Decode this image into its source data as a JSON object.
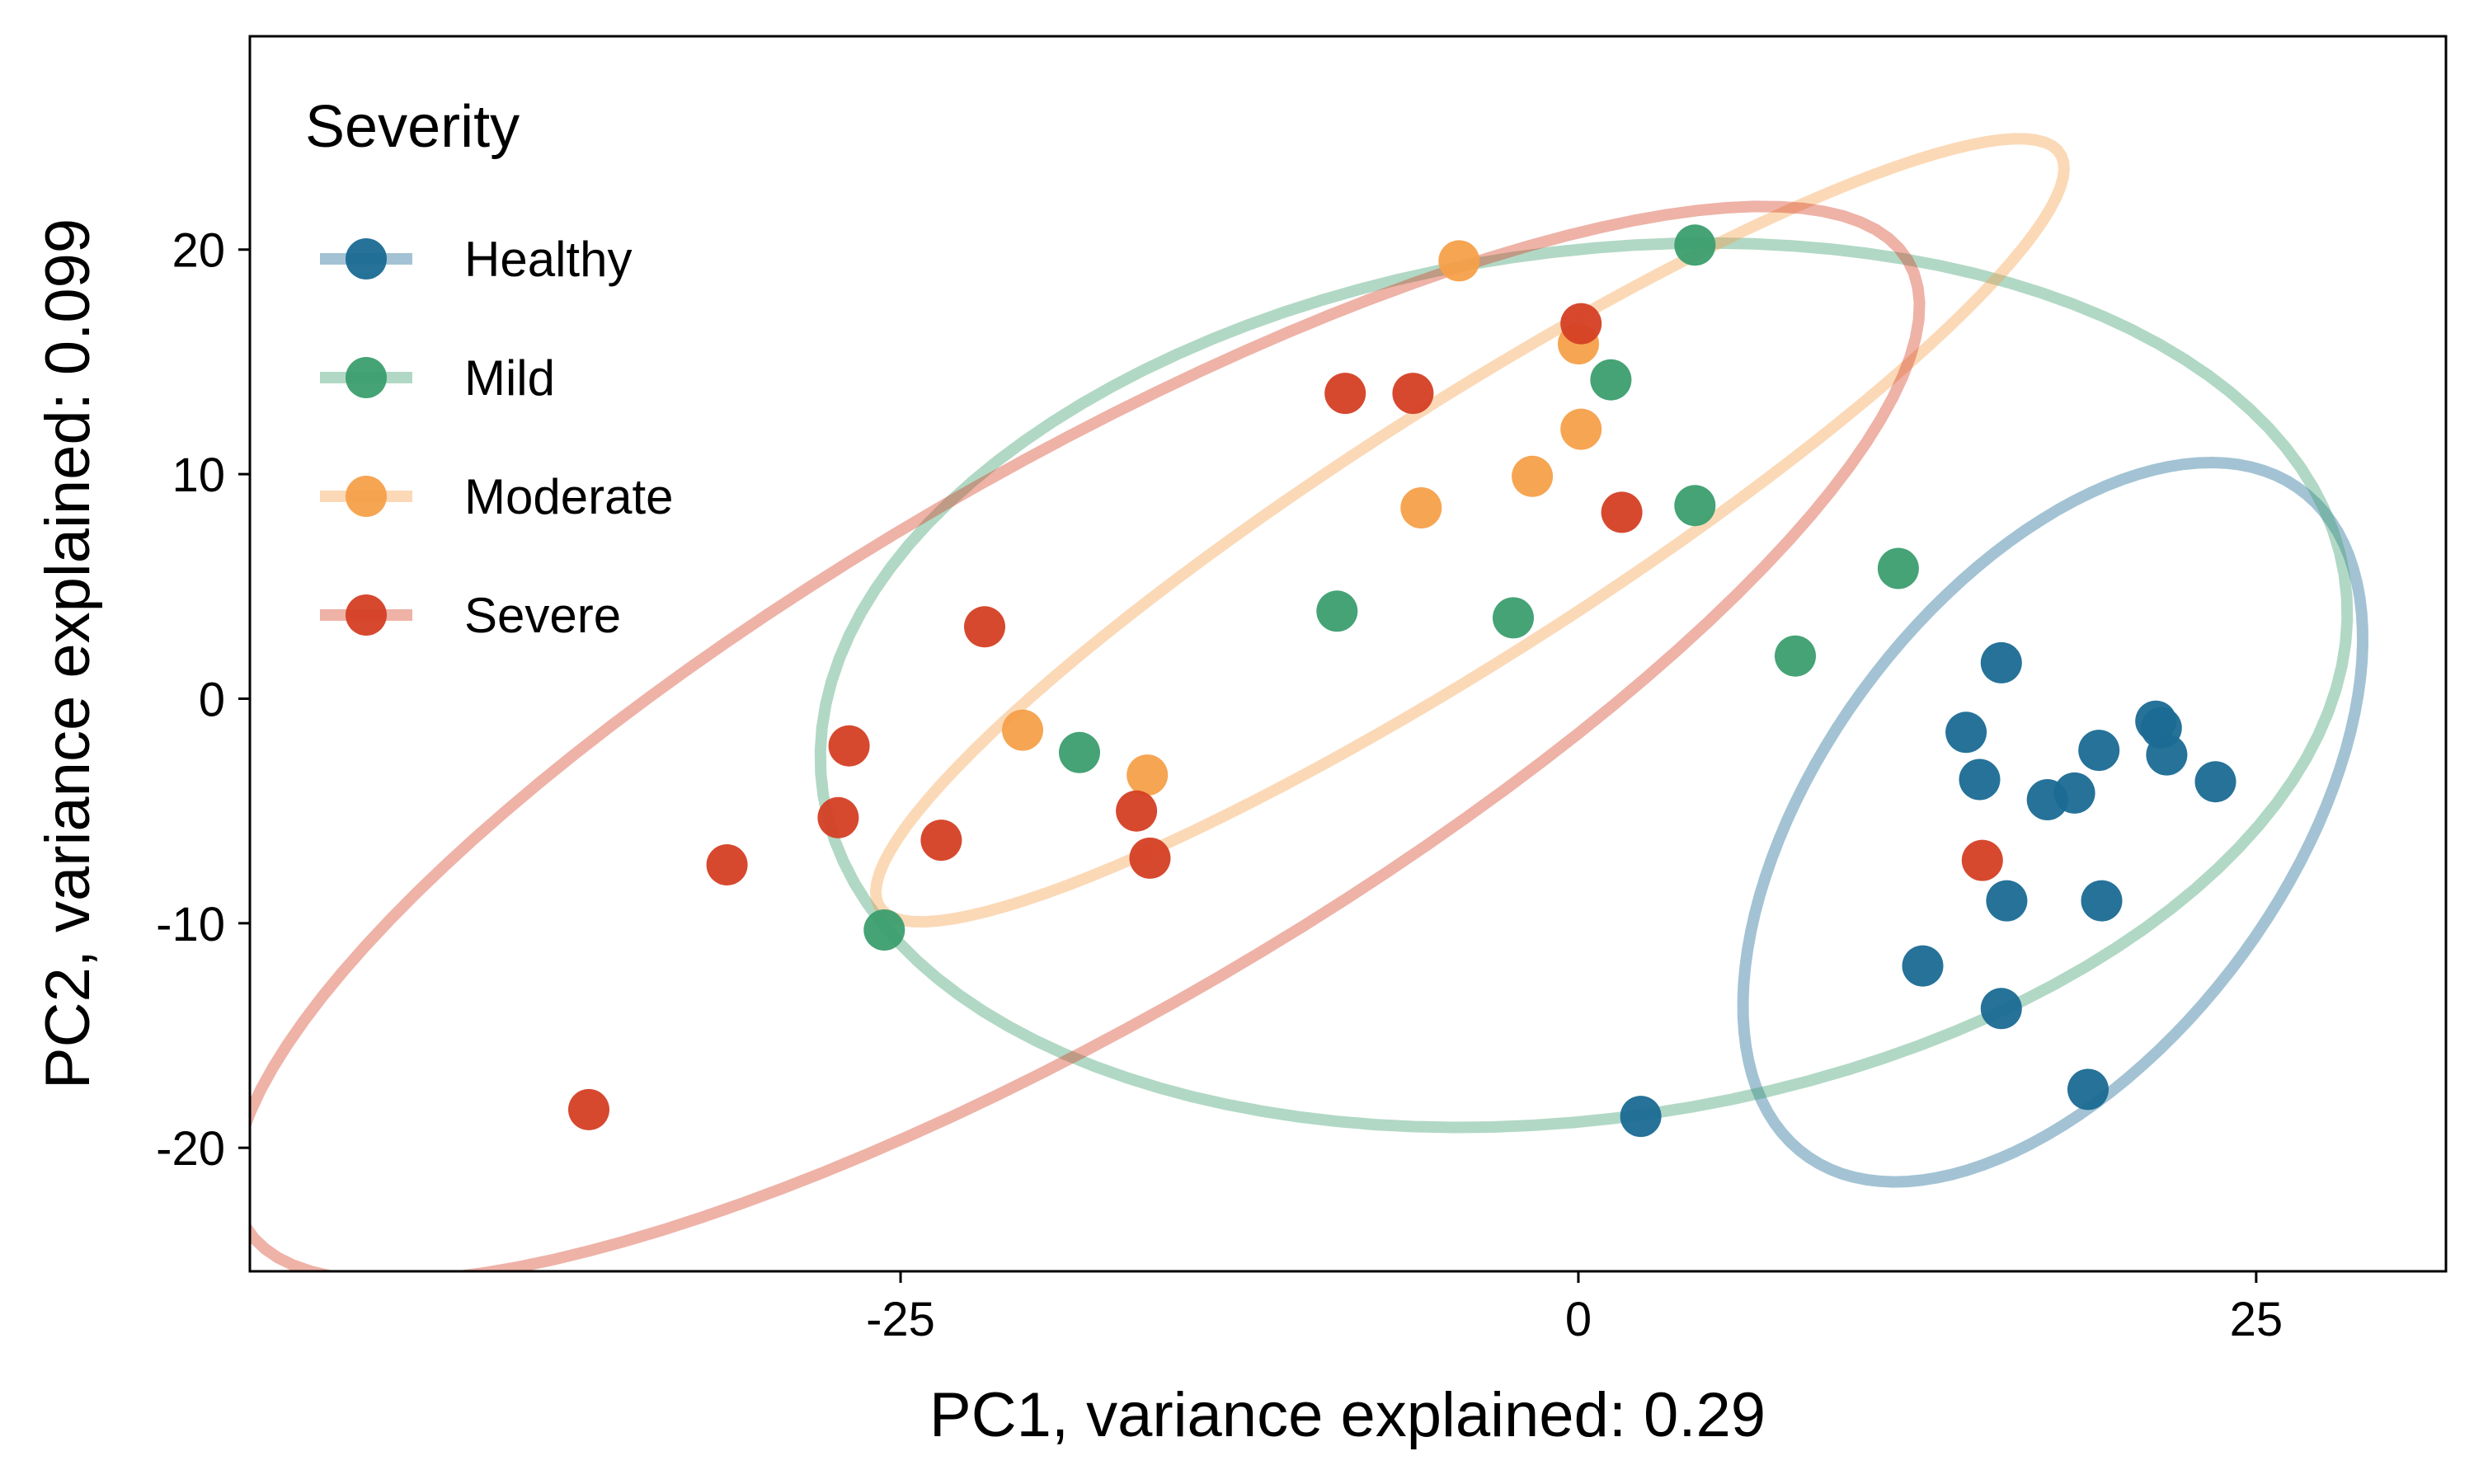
{
  "chart_data": {
    "type": "scatter",
    "title": "",
    "xlabel": "PC1, variance explained:  0.29",
    "ylabel": "PC2, variance explained:  0.099",
    "xlim": [
      -49,
      32
    ],
    "ylim": [
      -25.5,
      29.5
    ],
    "x_ticks": [
      -25,
      0,
      25
    ],
    "x_tick_labels": [
      "-25",
      "0",
      "25"
    ],
    "y_ticks": [
      -20,
      -10,
      0,
      10,
      20
    ],
    "y_tick_labels": [
      "-20",
      "-10",
      "0",
      "10",
      "20"
    ],
    "grid": false,
    "legend": {
      "title": "Severity",
      "position": "top-left"
    },
    "series": [
      {
        "name": "Healthy",
        "color": "#1a6a93",
        "ellipse": {
          "cx": 17.5,
          "cy": -5.5,
          "rx": 17.5,
          "ry": 9.0,
          "angle_deg": 62
        },
        "points": [
          [
            15.6,
            1.6
          ],
          [
            14.3,
            -1.5
          ],
          [
            14.8,
            -3.6
          ],
          [
            17.3,
            -4.5
          ],
          [
            18.3,
            -4.2
          ],
          [
            19.2,
            -2.3
          ],
          [
            21.3,
            -1.0
          ],
          [
            21.5,
            -1.3
          ],
          [
            21.7,
            -2.5
          ],
          [
            23.5,
            -3.7
          ],
          [
            15.8,
            -9.0
          ],
          [
            19.3,
            -9.0
          ],
          [
            12.7,
            -11.9
          ],
          [
            15.6,
            -13.8
          ],
          [
            18.8,
            -17.4
          ],
          [
            2.3,
            -18.6
          ]
        ]
      },
      {
        "name": "Mild",
        "color": "#3b9e6e",
        "ellipse": {
          "cx": 0.2,
          "cy": 0.6,
          "rx": 28.5,
          "ry": 19.2,
          "angle_deg": 12
        },
        "points": [
          [
            4.3,
            20.2
          ],
          [
            1.2,
            14.2
          ],
          [
            4.3,
            8.6
          ],
          [
            11.8,
            5.8
          ],
          [
            -8.9,
            3.9
          ],
          [
            -2.4,
            3.6
          ],
          [
            8.0,
            1.9
          ],
          [
            -18.4,
            -2.4
          ],
          [
            -25.6,
            -10.3
          ]
        ]
      },
      {
        "name": "Moderate",
        "color": "#f5a04a",
        "ellipse": {
          "cx": -4.0,
          "cy": 7.5,
          "rx": 27.5,
          "ry": 5.3,
          "angle_deg": 38
        },
        "points": [
          [
            -4.4,
            19.5
          ],
          [
            0.0,
            15.8
          ],
          [
            0.1,
            12.0
          ],
          [
            -1.7,
            9.9
          ],
          [
            -5.8,
            8.5
          ],
          [
            -20.5,
            -1.4
          ],
          [
            -15.9,
            -3.4
          ]
        ]
      },
      {
        "name": "Severe",
        "color": "#d43f24",
        "ellipse": {
          "cx": -18.5,
          "cy": -2.0,
          "rx": 37.5,
          "ry": 11.5,
          "angle_deg": 36
        },
        "points": [
          [
            0.1,
            16.7
          ],
          [
            -8.6,
            13.6
          ],
          [
            -6.1,
            13.6
          ],
          [
            1.6,
            8.3
          ],
          [
            -21.9,
            3.2
          ],
          [
            -26.9,
            -2.1
          ],
          [
            -27.3,
            -5.3
          ],
          [
            -23.5,
            -6.3
          ],
          [
            -16.3,
            -5.0
          ],
          [
            -15.8,
            -7.1
          ],
          [
            -31.4,
            -7.4
          ],
          [
            -36.5,
            -18.3
          ],
          [
            14.9,
            -7.2
          ]
        ]
      }
    ]
  }
}
